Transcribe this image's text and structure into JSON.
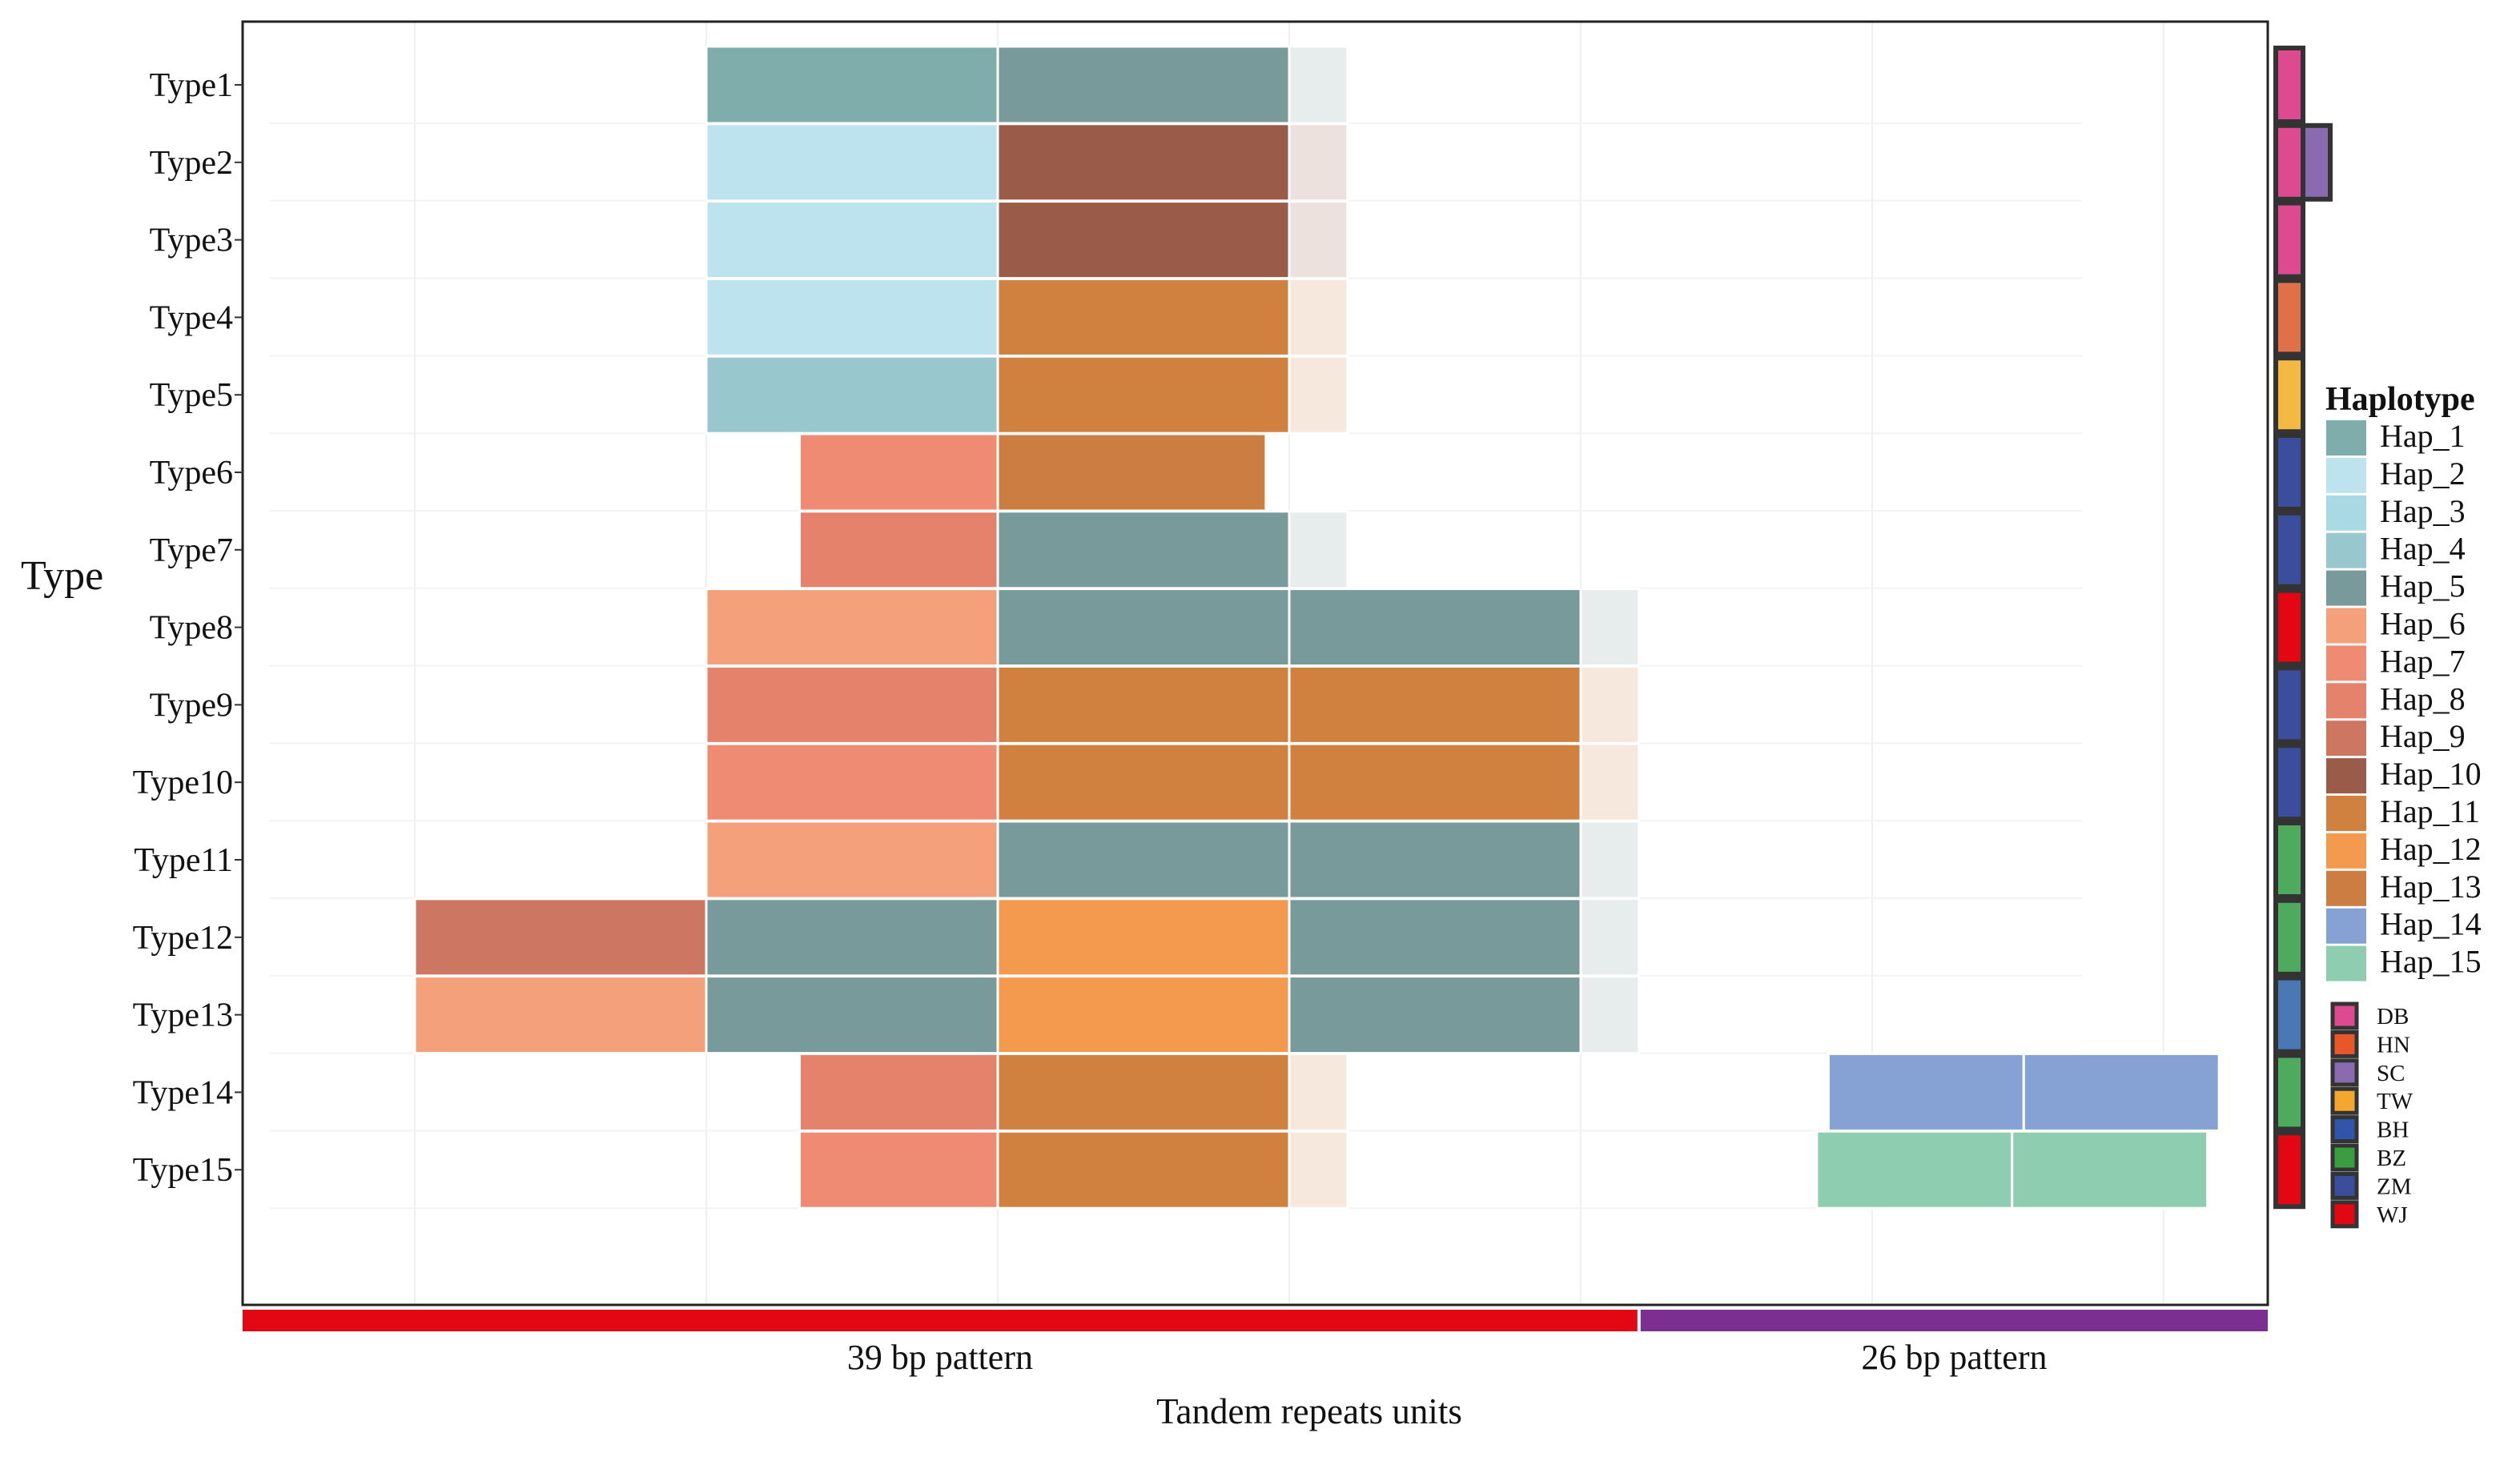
{
  "chart_data": {
    "type": "tile",
    "title": "",
    "ylabel": "Type",
    "xlabel": "Tandem repeats units",
    "patterns": [
      {
        "label": "39 bp pattern",
        "color": "#e30613",
        "unit_range": [
          0,
          4.7
        ]
      },
      {
        "label": "26 bp pattern",
        "color": "#7b2f91",
        "unit_range": [
          4.7,
          7
        ]
      }
    ],
    "x_unit_range": [
      0,
      7
    ],
    "types": [
      "Type1",
      "Type2",
      "Type3",
      "Type4",
      "Type5",
      "Type6",
      "Type7",
      "Type8",
      "Type9",
      "Type10",
      "Type11",
      "Type12",
      "Type13",
      "Type14",
      "Type15"
    ],
    "haplotype_legend_title": "Haplotype",
    "haplotypes": [
      {
        "name": "Hap_1",
        "color": "#7fadab"
      },
      {
        "name": "Hap_2",
        "color": "#bce3ee"
      },
      {
        "name": "Hap_3",
        "color": "#a9d9e2"
      },
      {
        "name": "Hap_4",
        "color": "#98c7cd"
      },
      {
        "name": "Hap_5",
        "color": "#789a9a"
      },
      {
        "name": "Hap_6",
        "color": "#f3a07b"
      },
      {
        "name": "Hap_7",
        "color": "#ef8b72"
      },
      {
        "name": "Hap_8",
        "color": "#e5826b"
      },
      {
        "name": "Hap_9",
        "color": "#cd7662"
      },
      {
        "name": "Hap_10",
        "color": "#9a5b48"
      },
      {
        "name": "Hap_11",
        "color": "#d08140"
      },
      {
        "name": "Hap_12",
        "color": "#f39a4f"
      },
      {
        "name": "Hap_13",
        "color": "#cb7d42"
      },
      {
        "name": "Hap_14",
        "color": "#86a2d5"
      },
      {
        "name": "Hap_15",
        "color": "#8ecdb0"
      }
    ],
    "rows": [
      {
        "type": "Type1",
        "segments": [
          {
            "start": 1.5,
            "end": 2.5,
            "hap": "Hap_1"
          },
          {
            "start": 2.5,
            "end": 3.5,
            "hap": "Hap_5"
          },
          {
            "start": 3.5,
            "end": 3.7,
            "hap": "Hap_5",
            "partial": true
          }
        ]
      },
      {
        "type": "Type2",
        "segments": [
          {
            "start": 1.5,
            "end": 2.5,
            "hap": "Hap_2"
          },
          {
            "start": 2.5,
            "end": 3.5,
            "hap": "Hap_10"
          },
          {
            "start": 3.5,
            "end": 3.7,
            "hap": "Hap_10",
            "partial": true
          }
        ]
      },
      {
        "type": "Type3",
        "segments": [
          {
            "start": 1.5,
            "end": 2.5,
            "hap": "Hap_2"
          },
          {
            "start": 2.5,
            "end": 3.5,
            "hap": "Hap_10"
          },
          {
            "start": 3.5,
            "end": 3.7,
            "hap": "Hap_10",
            "partial": true
          }
        ]
      },
      {
        "type": "Type4",
        "segments": [
          {
            "start": 1.5,
            "end": 2.5,
            "hap": "Hap_2"
          },
          {
            "start": 2.5,
            "end": 3.5,
            "hap": "Hap_11"
          },
          {
            "start": 3.5,
            "end": 3.7,
            "hap": "Hap_11",
            "partial": true
          }
        ]
      },
      {
        "type": "Type5",
        "segments": [
          {
            "start": 1.5,
            "end": 2.5,
            "hap": "Hap_4"
          },
          {
            "start": 2.5,
            "end": 3.5,
            "hap": "Hap_11"
          },
          {
            "start": 3.5,
            "end": 3.7,
            "hap": "Hap_11",
            "partial": true
          }
        ]
      },
      {
        "type": "Type6",
        "segments": [
          {
            "start": 1.82,
            "end": 2.5,
            "hap": "Hap_7"
          },
          {
            "start": 2.5,
            "end": 3.42,
            "hap": "Hap_13"
          }
        ]
      },
      {
        "type": "Type7",
        "segments": [
          {
            "start": 1.82,
            "end": 2.5,
            "hap": "Hap_8"
          },
          {
            "start": 2.5,
            "end": 3.5,
            "hap": "Hap_5"
          },
          {
            "start": 3.5,
            "end": 3.7,
            "hap": "Hap_5",
            "partial": true
          }
        ]
      },
      {
        "type": "Type8",
        "segments": [
          {
            "start": 1.5,
            "end": 2.5,
            "hap": "Hap_6"
          },
          {
            "start": 2.5,
            "end": 3.5,
            "hap": "Hap_5"
          },
          {
            "start": 3.5,
            "end": 4.5,
            "hap": "Hap_5"
          },
          {
            "start": 4.5,
            "end": 4.7,
            "hap": "Hap_5",
            "partial": true
          }
        ]
      },
      {
        "type": "Type9",
        "segments": [
          {
            "start": 1.5,
            "end": 2.5,
            "hap": "Hap_8"
          },
          {
            "start": 2.5,
            "end": 3.5,
            "hap": "Hap_11"
          },
          {
            "start": 3.5,
            "end": 4.5,
            "hap": "Hap_11"
          },
          {
            "start": 4.5,
            "end": 4.7,
            "hap": "Hap_11",
            "partial": true
          }
        ]
      },
      {
        "type": "Type10",
        "segments": [
          {
            "start": 1.5,
            "end": 2.5,
            "hap": "Hap_7"
          },
          {
            "start": 2.5,
            "end": 3.5,
            "hap": "Hap_11"
          },
          {
            "start": 3.5,
            "end": 4.5,
            "hap": "Hap_11"
          },
          {
            "start": 4.5,
            "end": 4.7,
            "hap": "Hap_11",
            "partial": true
          }
        ]
      },
      {
        "type": "Type11",
        "segments": [
          {
            "start": 1.5,
            "end": 2.5,
            "hap": "Hap_6"
          },
          {
            "start": 2.5,
            "end": 3.5,
            "hap": "Hap_5"
          },
          {
            "start": 3.5,
            "end": 4.5,
            "hap": "Hap_5"
          },
          {
            "start": 4.5,
            "end": 4.7,
            "hap": "Hap_5",
            "partial": true
          }
        ]
      },
      {
        "type": "Type12",
        "segments": [
          {
            "start": 0.5,
            "end": 1.5,
            "hap": "Hap_9"
          },
          {
            "start": 1.5,
            "end": 2.5,
            "hap": "Hap_5"
          },
          {
            "start": 2.5,
            "end": 3.5,
            "hap": "Hap_12"
          },
          {
            "start": 3.5,
            "end": 4.5,
            "hap": "Hap_5"
          },
          {
            "start": 4.5,
            "end": 4.7,
            "hap": "Hap_5",
            "partial": true
          }
        ]
      },
      {
        "type": "Type13",
        "segments": [
          {
            "start": 0.5,
            "end": 1.5,
            "hap": "Hap_6"
          },
          {
            "start": 1.5,
            "end": 2.5,
            "hap": "Hap_5"
          },
          {
            "start": 2.5,
            "end": 3.5,
            "hap": "Hap_12"
          },
          {
            "start": 3.5,
            "end": 4.5,
            "hap": "Hap_5"
          },
          {
            "start": 4.5,
            "end": 4.7,
            "hap": "Hap_5",
            "partial": true
          }
        ]
      },
      {
        "type": "Type14",
        "segments": [
          {
            "start": 1.82,
            "end": 2.5,
            "hap": "Hap_8"
          },
          {
            "start": 2.5,
            "end": 3.5,
            "hap": "Hap_11"
          },
          {
            "start": 3.5,
            "end": 3.7,
            "hap": "Hap_11",
            "partial": true
          },
          {
            "start": 5.35,
            "end": 6.02,
            "hap": "Hap_14"
          },
          {
            "start": 6.02,
            "end": 6.69,
            "hap": "Hap_14"
          }
        ]
      },
      {
        "type": "Type15",
        "segments": [
          {
            "start": 1.82,
            "end": 2.5,
            "hap": "Hap_7"
          },
          {
            "start": 2.5,
            "end": 3.5,
            "hap": "Hap_11"
          },
          {
            "start": 3.5,
            "end": 3.7,
            "hap": "Hap_11",
            "partial": true
          },
          {
            "start": 5.31,
            "end": 5.98,
            "hap": "Hap_15"
          },
          {
            "start": 5.98,
            "end": 6.65,
            "hap": "Hap_15"
          }
        ]
      }
    ],
    "region_legend": [
      {
        "name": "DB",
        "color": "#de4a8f"
      },
      {
        "name": "HN",
        "color": "#e8572a"
      },
      {
        "name": "SC",
        "color": "#8a6bb0"
      },
      {
        "name": "TW",
        "color": "#f4a72e"
      },
      {
        "name": "BH",
        "color": "#2f56a8"
      },
      {
        "name": "BZ",
        "color": "#3a9d3f"
      },
      {
        "name": "ZM",
        "color": "#3b4e9e"
      },
      {
        "name": "WJ",
        "color": "#e30613"
      }
    ],
    "region_annotations": [
      {
        "type": "Type1",
        "regions": [
          {
            "name": "DB",
            "color": "#de4a8f"
          }
        ]
      },
      {
        "type": "Type2",
        "regions": [
          {
            "name": "DB",
            "color": "#de4a8f"
          },
          {
            "name": "SC",
            "color": "#8a6bb0"
          }
        ]
      },
      {
        "type": "Type3",
        "regions": [
          {
            "name": "DB",
            "color": "#de4a8f"
          }
        ]
      },
      {
        "type": "Type4",
        "regions": [
          {
            "name": "HN",
            "color": "#e07048"
          }
        ]
      },
      {
        "type": "Type5",
        "regions": [
          {
            "name": "TW",
            "color": "#f4b942"
          }
        ]
      },
      {
        "type": "Type6",
        "regions": [
          {
            "name": "ZM",
            "color": "#3b4e9e"
          }
        ]
      },
      {
        "type": "Type7",
        "regions": [
          {
            "name": "ZM",
            "color": "#3b4e9e"
          }
        ]
      },
      {
        "type": "Type8",
        "regions": [
          {
            "name": "WJ",
            "color": "#e30613"
          }
        ]
      },
      {
        "type": "Type9",
        "regions": [
          {
            "name": "ZM",
            "color": "#3b4e9e"
          }
        ]
      },
      {
        "type": "Type10",
        "regions": [
          {
            "name": "ZM",
            "color": "#3b4e9e"
          }
        ]
      },
      {
        "type": "Type11",
        "regions": [
          {
            "name": "BZ",
            "color": "#4eaa5c"
          }
        ]
      },
      {
        "type": "Type12",
        "regions": [
          {
            "name": "BZ",
            "color": "#4eaa5c"
          }
        ]
      },
      {
        "type": "Type13",
        "regions": [
          {
            "name": "BH",
            "color": "#4a78b5"
          }
        ]
      },
      {
        "type": "Type14",
        "regions": [
          {
            "name": "BZ",
            "color": "#4eaa5c"
          }
        ]
      },
      {
        "type": "Type15",
        "regions": [
          {
            "name": "WJ",
            "color": "#e30613"
          }
        ]
      }
    ]
  }
}
